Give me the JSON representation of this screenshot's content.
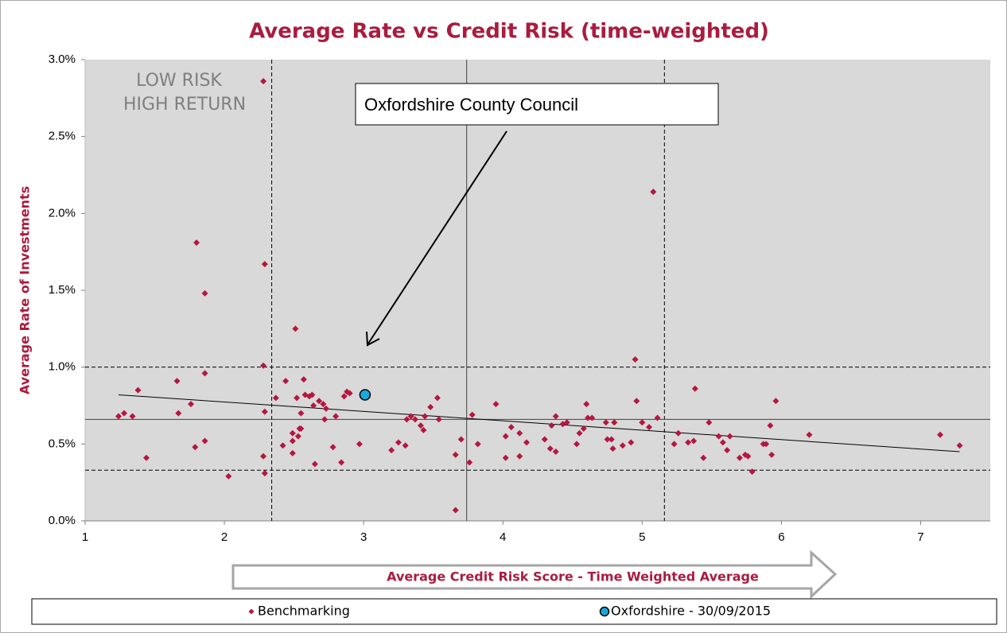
{
  "chart_data": {
    "type": "scatter",
    "title": "Average Rate vs Credit Risk (time-weighted)",
    "x_label": "Average Credit Risk Score - Time Weighted Average",
    "y_label": "Average Rate of Investments",
    "quadrant_label": [
      "LOW RISK",
      "HIGH RETURN"
    ],
    "callout": "Oxfordshire County Council",
    "xlim": [
      1,
      7.5
    ],
    "xticks": [
      1,
      2,
      3,
      4,
      5,
      6,
      7
    ],
    "ylim": [
      0,
      3
    ],
    "yticks": [
      {
        "value": 0,
        "label": "0.0%"
      },
      {
        "value": 0.5,
        "label": "0.5%"
      },
      {
        "value": 1,
        "label": "1.0%"
      },
      {
        "value": 1.5,
        "label": "1.5%"
      },
      {
        "value": 2,
        "label": "2.0%"
      },
      {
        "value": 2.5,
        "label": "2.5%"
      },
      {
        "value": 3,
        "label": "3.0%"
      }
    ],
    "vlines": [
      {
        "value": 2.34,
        "style": "dashed"
      },
      {
        "value": 3.74,
        "style": "solid"
      },
      {
        "value": 5.16,
        "style": "dashed"
      }
    ],
    "hlines": [
      {
        "value": 1.0,
        "style": "dashed"
      },
      {
        "value": 0.66,
        "style": "solid"
      },
      {
        "value": 0.33,
        "style": "dashed"
      }
    ],
    "trendline": {
      "x": [
        1.24,
        7.28
      ],
      "values": [
        0.82,
        0.45
      ]
    },
    "series": [
      {
        "name": "Benchmarking",
        "color": "#b5173f",
        "marker": "diamond",
        "x": [
          1.24,
          1.28,
          1.34,
          1.38,
          1.44,
          1.66,
          1.67,
          1.76,
          1.79,
          1.8,
          1.86,
          1.86,
          1.86,
          2.03,
          2.28,
          2.29,
          2.28,
          2.29,
          2.28,
          2.29,
          2.37,
          2.42,
          2.44,
          2.49,
          2.49,
          2.49,
          2.51,
          2.52,
          2.53,
          2.54,
          2.55,
          2.55,
          2.57,
          2.58,
          2.61,
          2.63,
          2.64,
          2.65,
          2.68,
          2.71,
          2.72,
          2.73,
          2.78,
          2.8,
          2.84,
          2.86,
          2.88,
          2.9,
          2.97,
          3.2,
          3.25,
          3.3,
          3.31,
          3.34,
          3.37,
          3.41,
          3.43,
          3.44,
          3.48,
          3.53,
          3.54,
          3.66,
          3.66,
          3.7,
          3.76,
          3.78,
          3.82,
          3.95,
          4.02,
          4.02,
          4.06,
          4.12,
          4.12,
          4.17,
          4.3,
          4.34,
          4.35,
          4.38,
          4.38,
          4.43,
          4.46,
          4.53,
          4.55,
          4.58,
          4.6,
          4.61,
          4.64,
          4.74,
          4.75,
          4.78,
          4.79,
          4.8,
          4.86,
          4.92,
          4.95,
          4.96,
          5.0,
          5.05,
          5.08,
          5.11,
          5.23,
          5.26,
          5.33,
          5.37,
          5.38,
          5.44,
          5.48,
          5.55,
          5.58,
          5.61,
          5.63,
          5.7,
          5.74,
          5.76,
          5.79,
          5.87,
          5.89,
          5.92,
          5.93,
          5.96,
          6.2,
          7.14,
          7.28
        ],
        "values": [
          0.68,
          0.7,
          0.68,
          0.85,
          0.41,
          0.91,
          0.7,
          0.76,
          0.48,
          1.81,
          1.48,
          0.96,
          0.52,
          0.29,
          2.86,
          1.67,
          1.01,
          0.71,
          0.42,
          0.31,
          0.8,
          0.49,
          0.91,
          0.57,
          0.52,
          0.44,
          1.25,
          0.8,
          0.55,
          0.6,
          0.6,
          0.7,
          0.92,
          0.82,
          0.81,
          0.82,
          0.75,
          0.37,
          0.78,
          0.76,
          0.66,
          0.73,
          0.48,
          0.68,
          0.38,
          0.81,
          0.84,
          0.83,
          0.5,
          0.46,
          0.51,
          0.49,
          0.66,
          0.68,
          0.66,
          0.62,
          0.59,
          0.68,
          0.74,
          0.8,
          0.66,
          0.43,
          0.07,
          0.53,
          0.38,
          0.69,
          0.5,
          0.76,
          0.55,
          0.41,
          0.61,
          0.57,
          0.42,
          0.51,
          0.53,
          0.47,
          0.62,
          0.68,
          0.45,
          0.63,
          0.64,
          0.5,
          0.57,
          0.6,
          0.76,
          0.67,
          0.67,
          0.64,
          0.53,
          0.53,
          0.47,
          0.64,
          0.49,
          0.51,
          1.05,
          0.78,
          0.64,
          0.61,
          2.14,
          0.67,
          0.5,
          0.57,
          0.51,
          0.52,
          0.86,
          0.41,
          0.64,
          0.55,
          0.51,
          0.46,
          0.55,
          0.41,
          0.43,
          0.42,
          0.32,
          0.5,
          0.5,
          0.62,
          0.43,
          0.78,
          0.56,
          0.56,
          0.49
        ]
      },
      {
        "name": "Oxfordshire - 30/09/2015",
        "color": "#1aa7d9",
        "marker": "circle",
        "x": [
          3.01
        ],
        "values": [
          0.82
        ]
      }
    ]
  }
}
